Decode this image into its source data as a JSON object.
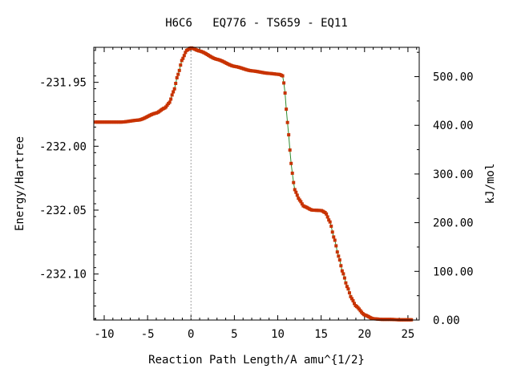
{
  "chart_data": {
    "type": "line",
    "title": "H6C6   EQ776 - TS659 - EQ11",
    "xlabel": "Reaction Path Length/A amu^{1/2}",
    "ylabel": "Energy/Hartree",
    "y2label": "kJ/mol",
    "xlim": [
      -11.2,
      26.3
    ],
    "ylim": [
      -232.136,
      -231.9226
    ],
    "y2lim": [
      0,
      560.2
    ],
    "xticks": [
      -10,
      -5,
      0,
      5,
      10,
      15,
      20,
      25
    ],
    "xtick_labels": [
      "-10",
      "-5",
      "0",
      "5",
      "10",
      "15",
      "20",
      "25"
    ],
    "yticks": [
      -231.95,
      -232.0,
      -232.05,
      -232.1
    ],
    "ytick_labels": [
      "-231.95",
      "-232.00",
      "-232.05",
      "-232.10"
    ],
    "y2ticks": [
      500,
      400,
      300,
      200,
      100,
      0
    ],
    "y2tick_labels": [
      "500.00",
      "400.00",
      "300.00",
      "200.00",
      "100.00",
      "0.00"
    ],
    "ts_marker_x": 0,
    "grid": false,
    "colors": {
      "line": "#2e8b2e",
      "points": "#c83200",
      "marker": "#a0a0a0"
    },
    "curve_knots": {
      "x": [
        -11.0,
        -8.0,
        -6.0,
        -4.0,
        -3.0,
        -2.5,
        -2.0,
        -1.5,
        -1.0,
        -0.5,
        0.0,
        1.0,
        3.0,
        5.0,
        7.0,
        9.0,
        10.2,
        10.6,
        10.8,
        11.0,
        11.2,
        11.4,
        11.6,
        11.8,
        12.0,
        12.5,
        13.0,
        14.0,
        15.0,
        15.5,
        16.0,
        16.5,
        17.0,
        17.5,
        18.0,
        18.5,
        19.0,
        20.0,
        21.0,
        22.0,
        23.0,
        24.0,
        25.5
      ],
      "y": [
        -231.9811,
        -231.9811,
        -231.9795,
        -231.974,
        -231.97,
        -231.966,
        -231.957,
        -231.944,
        -231.932,
        -231.925,
        -231.923,
        -231.9255,
        -231.932,
        -231.9375,
        -231.941,
        -231.943,
        -231.9438,
        -231.945,
        -231.956,
        -231.972,
        -231.987,
        -232.003,
        -232.017,
        -232.028,
        -232.035,
        -232.042,
        -232.047,
        -232.05,
        -232.0503,
        -232.052,
        -232.059,
        -232.072,
        -232.086,
        -232.099,
        -232.11,
        -232.119,
        -232.125,
        -232.132,
        -232.135,
        -232.1355,
        -232.1355,
        -232.1358,
        -232.1358
      ]
    }
  }
}
